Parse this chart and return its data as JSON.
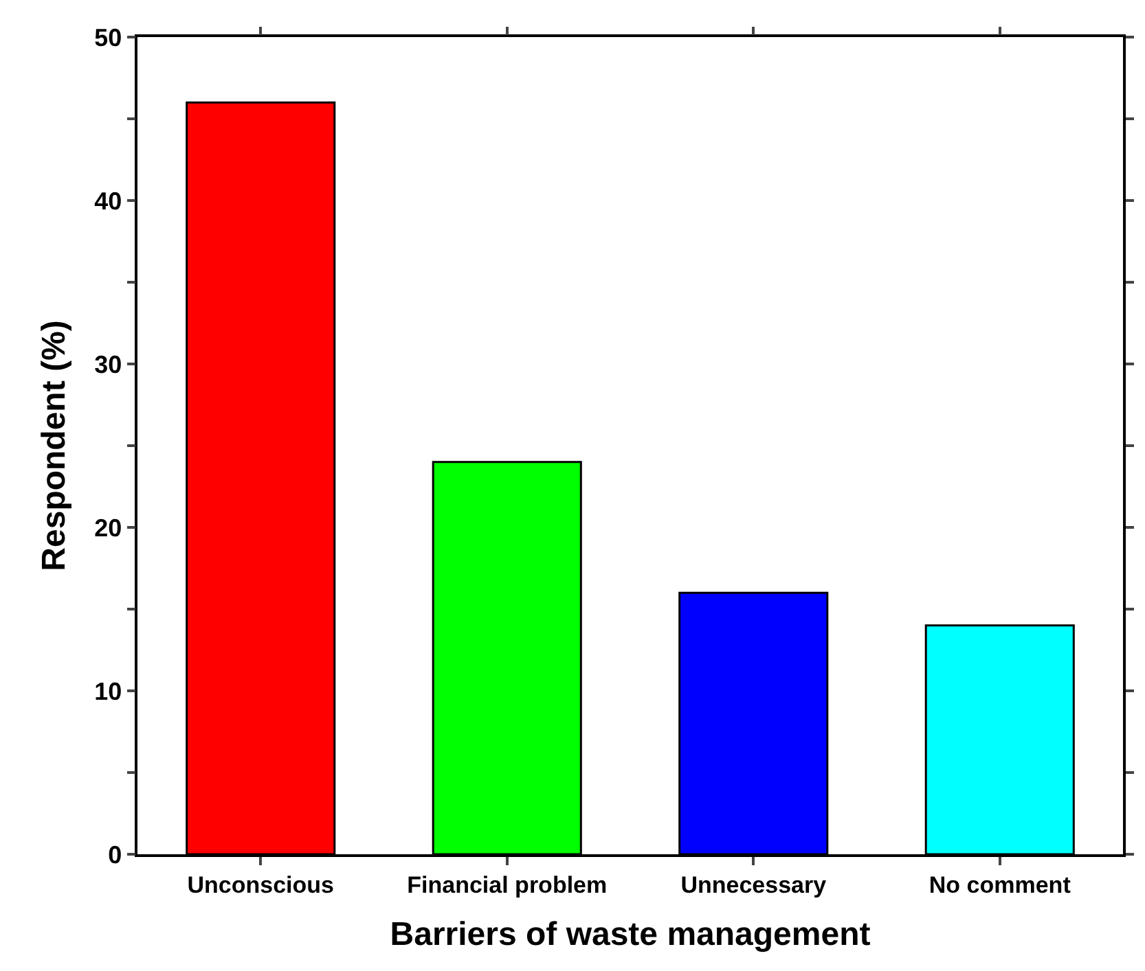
{
  "chart_data": {
    "type": "bar",
    "xlabel": "Barriers of waste management",
    "ylabel": "Respondent (%)",
    "categories": [
      "Unconscious",
      "Financial problem",
      "Unnecessary",
      "No comment"
    ],
    "values": [
      46,
      24,
      16,
      14
    ],
    "colors": [
      "#ff0000",
      "#00ff00",
      "#0000ff",
      "#00ffff"
    ],
    "ylim": [
      0,
      50
    ],
    "yticks": [
      0,
      {
        "value": 5,
        "label": null
      },
      10,
      {
        "value": 15,
        "label": null
      },
      20,
      {
        "value": 25,
        "label": null
      },
      30,
      {
        "value": 35,
        "label": null
      },
      40,
      {
        "value": 45,
        "label": null
      },
      50
    ],
    "grid": false
  }
}
